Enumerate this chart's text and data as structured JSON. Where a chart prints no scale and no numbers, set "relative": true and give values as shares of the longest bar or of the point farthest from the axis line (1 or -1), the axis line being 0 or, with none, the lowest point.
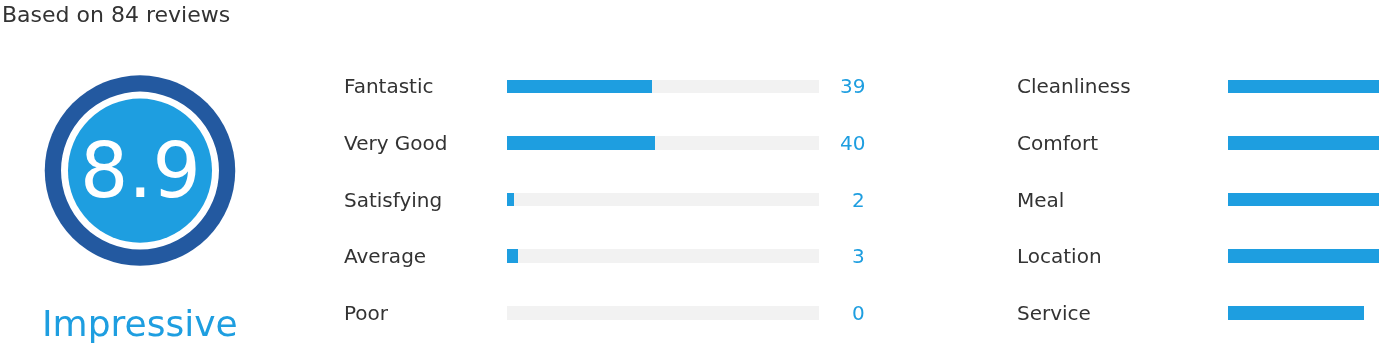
{
  "chart_data": [
    {
      "type": "other",
      "title": "Based on 84 reviews",
      "annotations": [
        "8.9",
        "Impressive"
      ]
    },
    {
      "type": "bar",
      "orientation": "horizontal",
      "categories": [
        "Fantastic",
        "Very Good",
        "Satisfying",
        "Average",
        "Poor"
      ],
      "stacked": true,
      "series": [
        {
          "color": "#1e9ee0",
          "values": [
            39,
            40,
            2,
            3,
            0
          ],
          "value_labels": [
            "39",
            "40",
            "2",
            "3",
            "0"
          ]
        },
        {
          "color": "#f2f2f2",
          "values": [
            45,
            44,
            82,
            81,
            84
          ]
        }
      ],
      "xlim": [
        0,
        84
      ],
      "tick_labels": "y"
    },
    {
      "type": "bar",
      "orientation": "horizontal",
      "relative": true,
      "categories": [
        "Cleanliness",
        "Comfort",
        "Meal",
        "Location",
        "Service"
      ],
      "values": [
        1,
        1,
        1,
        1,
        0.9
      ],
      "color": "#1e9ee0",
      "tick_labels": "y"
    }
  ]
}
